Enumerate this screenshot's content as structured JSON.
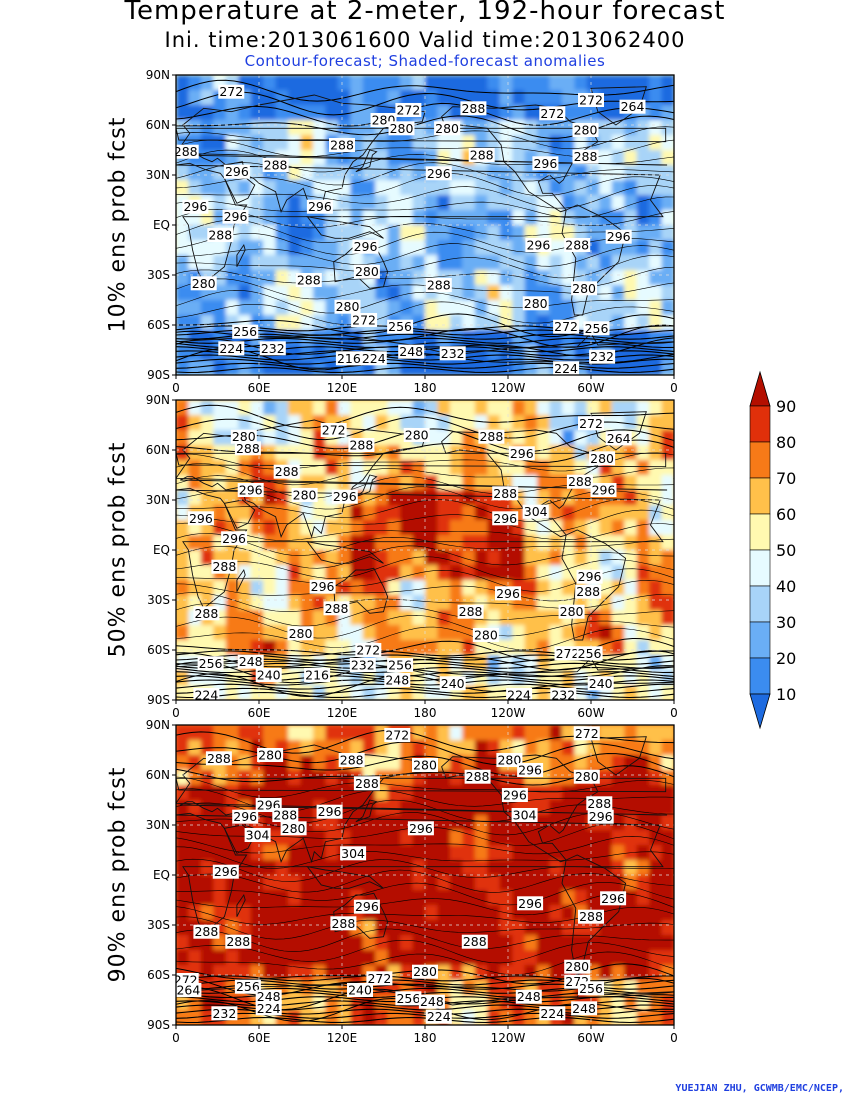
{
  "header": {
    "title": "Temperature at 2-meter, 192-hour forecast",
    "subtitle": "Ini. time:2013061600    Valid time:2013062400",
    "note": "Contour-forecast; Shaded-forecast anomalies"
  },
  "credit": "YUEJIAN ZHU, GCWMB/EMC/NCEP,",
  "colors": {
    "contour": "#000000",
    "land_outline": "#111111",
    "grid": "#e0e0e0",
    "colorbar": [
      "#1e6be0",
      "#3b8cf0",
      "#6aaef5",
      "#a8d4f8",
      "#e6fbff",
      "#fff9b0",
      "#ffc04a",
      "#f77a18",
      "#e0300a",
      "#b40f00"
    ]
  },
  "chart_data": [
    {
      "type": "heatmap",
      "ylabel": "10% ens prob fcst",
      "x_ticks": [
        "0",
        "60E",
        "120E",
        "180",
        "120W",
        "60W",
        "0"
      ],
      "y_ticks": [
        "90N",
        "60N",
        "30N",
        "EQ",
        "30S",
        "60S",
        "90S"
      ],
      "contour_labels": [
        {
          "v": "272",
          "lon": 40,
          "lat": 80
        },
        {
          "v": "272",
          "lon": 168,
          "lat": 69
        },
        {
          "v": "280",
          "lon": 150,
          "lat": 63
        },
        {
          "v": "280",
          "lon": 163,
          "lat": 58
        },
        {
          "v": "280",
          "lon": 196,
          "lat": 58
        },
        {
          "v": "288",
          "lon": 215,
          "lat": 70
        },
        {
          "v": "272",
          "lon": 272,
          "lat": 67
        },
        {
          "v": "272",
          "lon": 300,
          "lat": 75
        },
        {
          "v": "264",
          "lon": 330,
          "lat": 71
        },
        {
          "v": "280",
          "lon": 296,
          "lat": 57
        },
        {
          "v": "288",
          "lon": 120,
          "lat": 48
        },
        {
          "v": "288",
          "lon": 7,
          "lat": 44
        },
        {
          "v": "288",
          "lon": 221,
          "lat": 42
        },
        {
          "v": "296",
          "lon": 267,
          "lat": 37
        },
        {
          "v": "288",
          "lon": 296,
          "lat": 41
        },
        {
          "v": "296",
          "lon": 190,
          "lat": 31
        },
        {
          "v": "296",
          "lon": 44,
          "lat": 32
        },
        {
          "v": "288",
          "lon": 72,
          "lat": 36
        },
        {
          "v": "296",
          "lon": 14,
          "lat": 11
        },
        {
          "v": "296",
          "lon": 43,
          "lat": 5
        },
        {
          "v": "296",
          "lon": 104,
          "lat": 11
        },
        {
          "v": "288",
          "lon": 32,
          "lat": -6
        },
        {
          "v": "296",
          "lon": 137,
          "lat": -13
        },
        {
          "v": "296",
          "lon": 262,
          "lat": -12
        },
        {
          "v": "288",
          "lon": 290,
          "lat": -12
        },
        {
          "v": "296",
          "lon": 320,
          "lat": -7
        },
        {
          "v": "280",
          "lon": 138,
          "lat": -28
        },
        {
          "v": "288",
          "lon": 96,
          "lat": -33
        },
        {
          "v": "288",
          "lon": 190,
          "lat": -36
        },
        {
          "v": "280",
          "lon": 20,
          "lat": -35
        },
        {
          "v": "280",
          "lon": 295,
          "lat": -38
        },
        {
          "v": "280",
          "lon": 260,
          "lat": -47
        },
        {
          "v": "280",
          "lon": 124,
          "lat": -49
        },
        {
          "v": "272",
          "lon": 136,
          "lat": -57
        },
        {
          "v": "256",
          "lon": 162,
          "lat": -61
        },
        {
          "v": "256",
          "lon": 50,
          "lat": -64
        },
        {
          "v": "272",
          "lon": 282,
          "lat": -61
        },
        {
          "v": "256",
          "lon": 304,
          "lat": -62
        },
        {
          "v": "232",
          "lon": 70,
          "lat": -74
        },
        {
          "v": "224",
          "lon": 40,
          "lat": -74
        },
        {
          "v": "248",
          "lon": 170,
          "lat": -76
        },
        {
          "v": "232",
          "lon": 200,
          "lat": -77
        },
        {
          "v": "216",
          "lon": 125,
          "lat": -80
        },
        {
          "v": "224",
          "lon": 143,
          "lat": -80
        },
        {
          "v": "232",
          "lon": 308,
          "lat": -79
        },
        {
          "v": "224",
          "lon": 282,
          "lat": -86
        }
      ]
    },
    {
      "type": "heatmap",
      "ylabel": "50% ens prob fcst",
      "x_ticks": [
        "0",
        "60E",
        "120E",
        "180",
        "120W",
        "60W",
        "0"
      ],
      "y_ticks": [
        "90N",
        "60N",
        "30N",
        "EQ",
        "30S",
        "60S",
        "90S"
      ],
      "contour_labels": [
        {
          "v": "280",
          "lon": 49,
          "lat": 68
        },
        {
          "v": "272",
          "lon": 114,
          "lat": 72
        },
        {
          "v": "280",
          "lon": 174,
          "lat": 69
        },
        {
          "v": "288",
          "lon": 228,
          "lat": 68
        },
        {
          "v": "272",
          "lon": 300,
          "lat": 76
        },
        {
          "v": "264",
          "lon": 320,
          "lat": 67
        },
        {
          "v": "288",
          "lon": 52,
          "lat": 61
        },
        {
          "v": "288",
          "lon": 134,
          "lat": 63
        },
        {
          "v": "296",
          "lon": 250,
          "lat": 58
        },
        {
          "v": "280",
          "lon": 308,
          "lat": 55
        },
        {
          "v": "288",
          "lon": 80,
          "lat": 47
        },
        {
          "v": "296",
          "lon": 54,
          "lat": 36
        },
        {
          "v": "280",
          "lon": 93,
          "lat": 33
        },
        {
          "v": "296",
          "lon": 122,
          "lat": 32
        },
        {
          "v": "288",
          "lon": 238,
          "lat": 34
        },
        {
          "v": "288",
          "lon": 292,
          "lat": 41
        },
        {
          "v": "296",
          "lon": 309,
          "lat": 36
        },
        {
          "v": "304",
          "lon": 260,
          "lat": 23
        },
        {
          "v": "296",
          "lon": 238,
          "lat": 19
        },
        {
          "v": "296",
          "lon": 18,
          "lat": 19
        },
        {
          "v": "296",
          "lon": 42,
          "lat": 7
        },
        {
          "v": "288",
          "lon": 35,
          "lat": -10
        },
        {
          "v": "296",
          "lon": 106,
          "lat": -22
        },
        {
          "v": "296",
          "lon": 240,
          "lat": -26
        },
        {
          "v": "296",
          "lon": 299,
          "lat": -16
        },
        {
          "v": "288",
          "lon": 298,
          "lat": -25
        },
        {
          "v": "288",
          "lon": 116,
          "lat": -35
        },
        {
          "v": "288",
          "lon": 22,
          "lat": -38
        },
        {
          "v": "288",
          "lon": 213,
          "lat": -37
        },
        {
          "v": "280",
          "lon": 286,
          "lat": -37
        },
        {
          "v": "280",
          "lon": 90,
          "lat": -50
        },
        {
          "v": "280",
          "lon": 224,
          "lat": -51
        },
        {
          "v": "272",
          "lon": 139,
          "lat": -60
        },
        {
          "v": "272",
          "lon": 283,
          "lat": -62
        },
        {
          "v": "256",
          "lon": 299,
          "lat": -62
        },
        {
          "v": "256",
          "lon": 25,
          "lat": -68
        },
        {
          "v": "248",
          "lon": 54,
          "lat": -67
        },
        {
          "v": "232",
          "lon": 135,
          "lat": -69
        },
        {
          "v": "256",
          "lon": 162,
          "lat": -69
        },
        {
          "v": "240",
          "lon": 67,
          "lat": -75
        },
        {
          "v": "216",
          "lon": 102,
          "lat": -75
        },
        {
          "v": "248",
          "lon": 160,
          "lat": -78
        },
        {
          "v": "240",
          "lon": 200,
          "lat": -80
        },
        {
          "v": "224",
          "lon": 248,
          "lat": -87
        },
        {
          "v": "232",
          "lon": 280,
          "lat": -87
        },
        {
          "v": "240",
          "lon": 307,
          "lat": -80
        },
        {
          "v": "224",
          "lon": 22,
          "lat": -87
        }
      ]
    },
    {
      "type": "heatmap",
      "ylabel": "90% ens prob fcst",
      "x_ticks": [
        "0",
        "60E",
        "120E",
        "180",
        "120W",
        "60W",
        "0"
      ],
      "y_ticks": [
        "90N",
        "60N",
        "30N",
        "EQ",
        "30S",
        "60S",
        "90S"
      ],
      "contour_labels": [
        {
          "v": "272",
          "lon": 160,
          "lat": 84
        },
        {
          "v": "272",
          "lon": 297,
          "lat": 85
        },
        {
          "v": "288",
          "lon": 31,
          "lat": 70
        },
        {
          "v": "280",
          "lon": 68,
          "lat": 72
        },
        {
          "v": "288",
          "lon": 127,
          "lat": 69
        },
        {
          "v": "280",
          "lon": 180,
          "lat": 66
        },
        {
          "v": "280",
          "lon": 241,
          "lat": 69
        },
        {
          "v": "296",
          "lon": 256,
          "lat": 63
        },
        {
          "v": "288",
          "lon": 218,
          "lat": 59
        },
        {
          "v": "280",
          "lon": 297,
          "lat": 59
        },
        {
          "v": "288",
          "lon": 138,
          "lat": 55
        },
        {
          "v": "296",
          "lon": 245,
          "lat": 48
        },
        {
          "v": "288",
          "lon": 306,
          "lat": 43
        },
        {
          "v": "296",
          "lon": 307,
          "lat": 35
        },
        {
          "v": "296",
          "lon": 67,
          "lat": 42
        },
        {
          "v": "288",
          "lon": 79,
          "lat": 36
        },
        {
          "v": "296",
          "lon": 111,
          "lat": 38
        },
        {
          "v": "296",
          "lon": 50,
          "lat": 35
        },
        {
          "v": "280",
          "lon": 85,
          "lat": 28
        },
        {
          "v": "304",
          "lon": 59,
          "lat": 24
        },
        {
          "v": "296",
          "lon": 177,
          "lat": 28
        },
        {
          "v": "304",
          "lon": 252,
          "lat": 36
        },
        {
          "v": "304",
          "lon": 128,
          "lat": 13
        },
        {
          "v": "296",
          "lon": 36,
          "lat": 2
        },
        {
          "v": "296",
          "lon": 316,
          "lat": -14
        },
        {
          "v": "296",
          "lon": 256,
          "lat": -17
        },
        {
          "v": "296",
          "lon": 138,
          "lat": -19
        },
        {
          "v": "288",
          "lon": 300,
          "lat": -25
        },
        {
          "v": "288",
          "lon": 121,
          "lat": -29
        },
        {
          "v": "288",
          "lon": 22,
          "lat": -34
        },
        {
          "v": "288",
          "lon": 45,
          "lat": -40
        },
        {
          "v": "288",
          "lon": 216,
          "lat": -40
        },
        {
          "v": "280",
          "lon": 290,
          "lat": -55
        },
        {
          "v": "280",
          "lon": 180,
          "lat": -58
        },
        {
          "v": "272",
          "lon": 147,
          "lat": -62
        },
        {
          "v": "272",
          "lon": 290,
          "lat": -64
        },
        {
          "v": "256",
          "lon": 300,
          "lat": -68
        },
        {
          "v": "272",
          "lon": 7,
          "lat": -63
        },
        {
          "v": "264",
          "lon": 9,
          "lat": -69
        },
        {
          "v": "256",
          "lon": 52,
          "lat": -67
        },
        {
          "v": "240",
          "lon": 133,
          "lat": -69
        },
        {
          "v": "248",
          "lon": 67,
          "lat": -73
        },
        {
          "v": "224",
          "lon": 67,
          "lat": -80
        },
        {
          "v": "256",
          "lon": 168,
          "lat": -74
        },
        {
          "v": "248",
          "lon": 185,
          "lat": -76
        },
        {
          "v": "248",
          "lon": 255,
          "lat": -73
        },
        {
          "v": "248",
          "lon": 295,
          "lat": -80
        },
        {
          "v": "224",
          "lon": 272,
          "lat": -83
        },
        {
          "v": "232",
          "lon": 35,
          "lat": -83
        },
        {
          "v": "224",
          "lon": 190,
          "lat": -85
        }
      ]
    }
  ],
  "colorbar": {
    "ticks": [
      "10",
      "20",
      "30",
      "40",
      "50",
      "60",
      "70",
      "80",
      "90"
    ]
  }
}
